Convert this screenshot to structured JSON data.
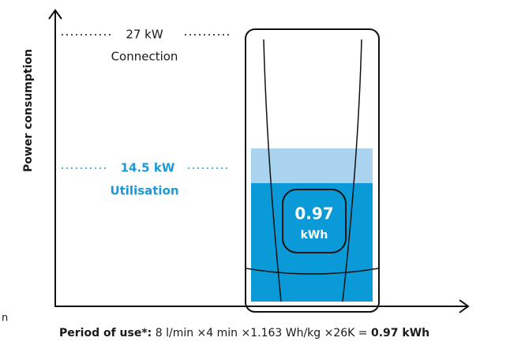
{
  "y_axis_label": "Power consumption",
  "connection": {
    "value": "27 kW",
    "label": "Connection"
  },
  "utilisation": {
    "value": "14.5 kW",
    "label": "Utilisation"
  },
  "display": {
    "value": "0.97",
    "unit": "kWh"
  },
  "footer": {
    "lead": "Period of use*:",
    "formula": " 8 l/min ×4 min ×1.163 Wh/kg ×26K = ",
    "result": "0.97 kWh"
  },
  "fragment": "n"
}
